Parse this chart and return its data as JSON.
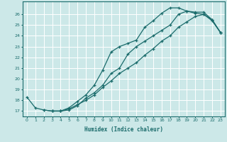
{
  "title": "",
  "xlabel": "Humidex (Indice chaleur)",
  "bg_color": "#cce8e8",
  "grid_color": "#ffffff",
  "line_color": "#1a6b6b",
  "xlim": [
    -0.5,
    23.5
  ],
  "ylim": [
    16.5,
    27.2
  ],
  "xticks": [
    0,
    1,
    2,
    3,
    4,
    5,
    6,
    7,
    8,
    9,
    10,
    11,
    12,
    13,
    14,
    15,
    16,
    17,
    18,
    19,
    20,
    21,
    22,
    23
  ],
  "yticks": [
    17,
    18,
    19,
    20,
    21,
    22,
    23,
    24,
    25,
    26
  ],
  "line1_x": [
    0,
    1,
    2,
    3,
    4,
    5,
    6,
    7,
    8,
    9,
    10,
    11,
    12,
    13,
    14,
    15,
    16,
    17,
    18,
    19,
    20,
    21,
    22,
    23
  ],
  "line1_y": [
    18.3,
    17.3,
    17.1,
    17.0,
    17.0,
    17.1,
    17.5,
    18.2,
    18.7,
    19.4,
    20.5,
    21.0,
    22.3,
    23.0,
    23.5,
    24.0,
    24.5,
    25.0,
    26.0,
    26.3,
    26.2,
    26.2,
    25.5,
    24.3
  ],
  "line2_x": [
    2,
    3,
    4,
    5,
    6,
    7,
    8,
    9,
    10,
    11,
    12,
    13,
    14,
    15,
    16,
    17,
    18,
    19,
    20,
    21,
    22,
    23
  ],
  "line2_y": [
    17.1,
    17.0,
    17.0,
    17.2,
    17.6,
    18.0,
    18.5,
    19.2,
    19.8,
    20.5,
    21.0,
    21.5,
    22.2,
    22.8,
    23.5,
    24.0,
    24.8,
    25.3,
    25.8,
    26.0,
    25.4,
    24.3
  ],
  "line3_x": [
    3,
    4,
    5,
    6,
    7,
    8,
    9,
    10,
    11,
    12,
    13,
    14,
    15,
    16,
    17,
    18,
    19,
    20,
    21,
    22,
    23
  ],
  "line3_y": [
    17.0,
    17.0,
    17.3,
    17.9,
    18.5,
    19.4,
    20.8,
    22.5,
    23.0,
    23.3,
    23.6,
    24.8,
    25.4,
    26.1,
    26.6,
    26.6,
    26.3,
    26.1,
    26.0,
    25.5,
    24.3
  ]
}
